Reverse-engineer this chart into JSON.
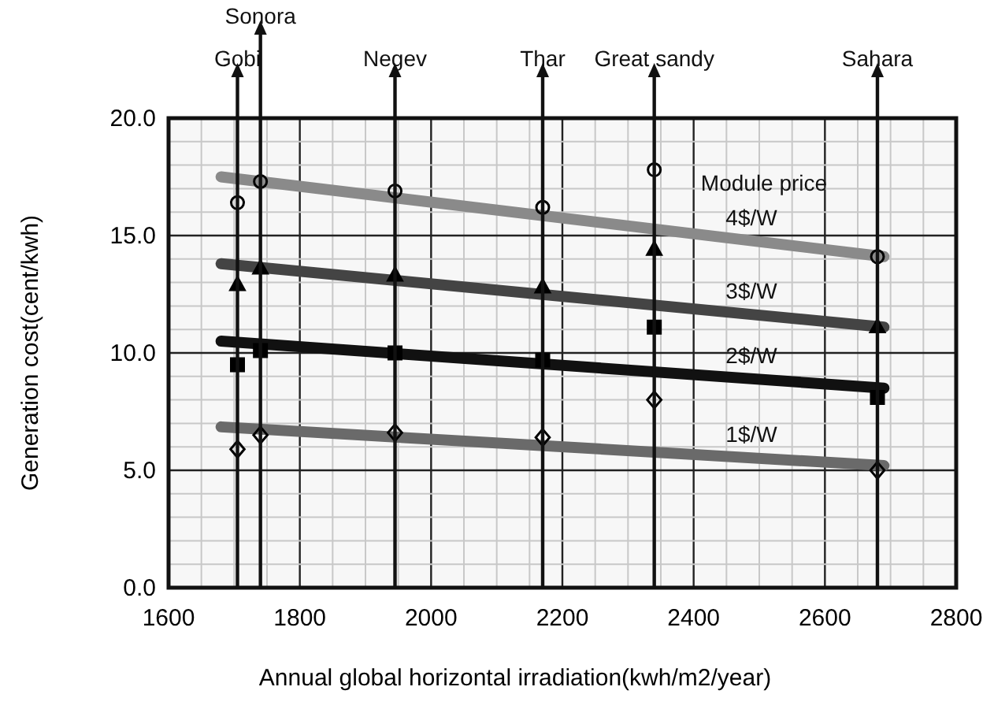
{
  "chart_data": {
    "type": "scatter",
    "xlabel": "Annual global horizontal irradiation(kwh/m2/year)",
    "ylabel": "Generation cost(cent/kwh)",
    "xlim": [
      1600,
      2800
    ],
    "ylim": [
      0,
      20
    ],
    "xticks": [
      1600,
      1800,
      2000,
      2200,
      2400,
      2600,
      2800
    ],
    "yticks": [
      {
        "value": 0,
        "label": "0.0"
      },
      {
        "value": 5,
        "label": "5.0"
      },
      {
        "value": 10,
        "label": "10.0"
      },
      {
        "value": 15,
        "label": "15.0"
      },
      {
        "value": 20,
        "label": "20.0"
      }
    ],
    "grid": true,
    "series": [
      {
        "color": "#000000",
        "marker": "circle",
        "x": [
          1705,
          1740,
          1945,
          2170,
          2340,
          2680
        ],
        "values": [
          16.4,
          17.3,
          16.9,
          16.2,
          17.8,
          14.1
        ]
      },
      {
        "color": "#000000",
        "marker": "triangle",
        "x": [
          1705,
          1740,
          1945,
          2170,
          2340,
          2680
        ],
        "values": [
          12.9,
          13.6,
          13.3,
          12.8,
          14.4,
          11.1
        ]
      },
      {
        "color": "#000000",
        "marker": "square",
        "x": [
          1705,
          1740,
          1945,
          2170,
          2340,
          2680
        ],
        "values": [
          9.5,
          10.1,
          10.0,
          9.7,
          11.1,
          8.1
        ]
      },
      {
        "color": "#000000",
        "marker": "diamond",
        "x": [
          1705,
          1740,
          1945,
          2170,
          2340,
          2680
        ],
        "values": [
          5.9,
          6.5,
          6.6,
          6.4,
          8.0,
          5.0
        ]
      },
      {
        "type": "line",
        "name": "4$/W",
        "color": "#8a8a8a",
        "x": [
          1680,
          2690
        ],
        "values": [
          17.5,
          14.1
        ]
      },
      {
        "type": "line",
        "name": "3$/W",
        "color": "#444444",
        "x": [
          1680,
          2690
        ],
        "values": [
          13.8,
          11.1
        ]
      },
      {
        "type": "line",
        "name": "2$/W",
        "color": "#111111",
        "x": [
          1680,
          2690
        ],
        "values": [
          10.5,
          8.5
        ]
      },
      {
        "type": "line",
        "name": "1$/W",
        "color": "#6a6a6a",
        "x": [
          1680,
          2690
        ],
        "values": [
          6.85,
          5.2
        ]
      }
    ],
    "ref_lines": [
      {
        "axis": "x",
        "value": 1705,
        "label": "Gobi"
      },
      {
        "axis": "x",
        "value": 1740,
        "label": "Sonora"
      },
      {
        "axis": "x",
        "value": 1945,
        "label": "Negev"
      },
      {
        "axis": "x",
        "value": 2170,
        "label": "Thar"
      },
      {
        "axis": "x",
        "value": 2340,
        "label": "Great sandy"
      },
      {
        "axis": "x",
        "value": 2680,
        "label": "Sahara"
      }
    ],
    "annotations": [
      "Module price"
    ]
  }
}
